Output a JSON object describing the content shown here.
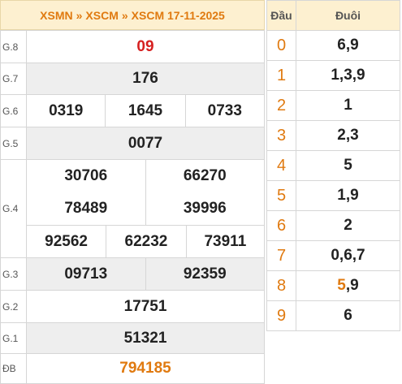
{
  "header": {
    "crumb1": "XSMN",
    "sep": "»",
    "crumb2": "XSCM",
    "crumb3": "XSCM 17-11-2025"
  },
  "results": {
    "g8": {
      "label": "G.8",
      "values": [
        "09"
      ]
    },
    "g7": {
      "label": "G.7",
      "values": [
        "176"
      ]
    },
    "g6": {
      "label": "G.6",
      "values": [
        "0319",
        "1645",
        "0733"
      ]
    },
    "g5": {
      "label": "G.5",
      "values": [
        "0077"
      ]
    },
    "g4": {
      "label": "G.4",
      "values": [
        "30706",
        "66270",
        "78489",
        "39996",
        "92562",
        "62232",
        "73911"
      ]
    },
    "g3": {
      "label": "G.3",
      "values": [
        "09713",
        "92359"
      ]
    },
    "g2": {
      "label": "G.2",
      "values": [
        "17751"
      ]
    },
    "g1": {
      "label": "G.1",
      "values": [
        "51321"
      ]
    },
    "db": {
      "label": "ĐB",
      "values": [
        "794185"
      ]
    }
  },
  "loto": {
    "col_head": "Đầu",
    "col_tail": "Đuôi",
    "rows": [
      {
        "head": "0",
        "tail": "6,9"
      },
      {
        "head": "1",
        "tail": "1,3,9"
      },
      {
        "head": "2",
        "tail": "1"
      },
      {
        "head": "3",
        "tail": "2,3"
      },
      {
        "head": "4",
        "tail": "5"
      },
      {
        "head": "5",
        "tail": "1,9"
      },
      {
        "head": "6",
        "tail": "2"
      },
      {
        "head": "7",
        "tail": "0,6,7"
      },
      {
        "head": "8",
        "tail_hl": "5",
        "tail_rest": ",9"
      },
      {
        "head": "9",
        "tail": "6"
      }
    ]
  },
  "colors": {
    "accent": "#e07a10",
    "special": "#d62020",
    "header_bg": "#fdf0d0",
    "alt_row": "#eeeeee"
  }
}
